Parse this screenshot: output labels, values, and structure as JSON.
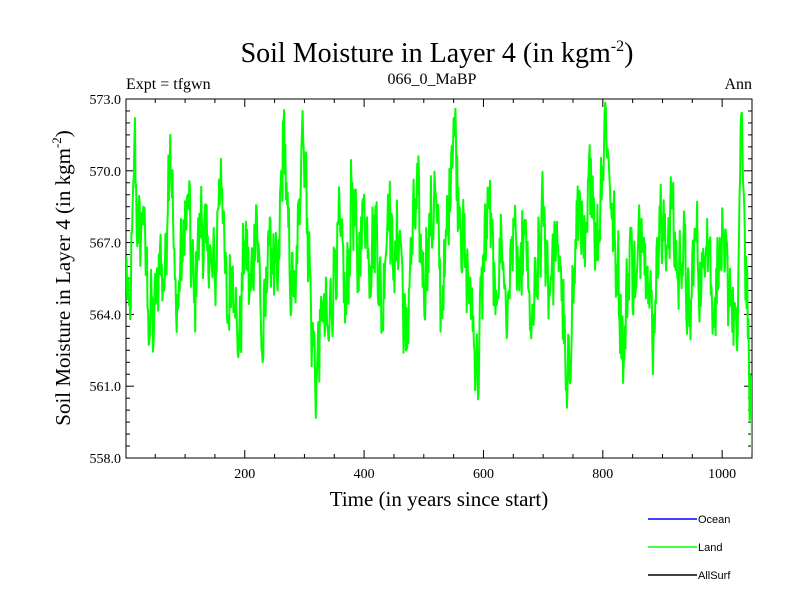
{
  "chart_data": {
    "type": "line",
    "title_main": "Soil Moisture in Layer 4 (in kgm",
    "title_sup": "-2",
    "title_close": ")",
    "subtitle_left": "Expt = tfgwn",
    "subtitle_center": "066_0_MaBP",
    "subtitle_right": "Ann",
    "xlabel": "Time (in years since start)",
    "ylabel_main": "Soil Moisture in Layer 4 (in kgm",
    "ylabel_sup": "-2",
    "ylabel_close": ")",
    "xlim": [
      1,
      1050
    ],
    "ylim": [
      558.0,
      573.0
    ],
    "xticks": [
      200,
      400,
      600,
      800,
      1000
    ],
    "yticks": [
      "558.0",
      "561.0",
      "564.0",
      "567.0",
      "570.0",
      "573.0"
    ],
    "legend": [
      {
        "name": "Ocean",
        "color": "#0000ff"
      },
      {
        "name": "Land",
        "color": "#00ff00"
      },
      {
        "name": "AllSurf",
        "color": "#000000"
      }
    ],
    "series": [
      {
        "name": "Land",
        "color": "#00ff00",
        "x_start": 1,
        "x_step": 1,
        "anchors": [
          [
            1,
            565.5
          ],
          [
            8,
            563.8
          ],
          [
            15,
            571.3
          ],
          [
            22,
            567.0
          ],
          [
            30,
            568.5
          ],
          [
            38,
            564.2
          ],
          [
            48,
            563.5
          ],
          [
            58,
            566.8
          ],
          [
            65,
            565.0
          ],
          [
            75,
            571.5
          ],
          [
            85,
            564.0
          ],
          [
            95,
            566.5
          ],
          [
            105,
            569.0
          ],
          [
            115,
            564.5
          ],
          [
            125,
            568.0
          ],
          [
            135,
            567.0
          ],
          [
            150,
            565.5
          ],
          [
            160,
            570.5
          ],
          [
            170,
            564.0
          ],
          [
            180,
            566.0
          ],
          [
            190,
            562.5
          ],
          [
            200,
            567.0
          ],
          [
            210,
            565.0
          ],
          [
            220,
            568.5
          ],
          [
            230,
            562.0
          ],
          [
            240,
            567.5
          ],
          [
            255,
            565.0
          ],
          [
            265,
            572.0
          ],
          [
            275,
            566.0
          ],
          [
            285,
            564.5
          ],
          [
            297,
            572.5
          ],
          [
            305,
            568.0
          ],
          [
            313,
            563.0
          ],
          [
            320,
            561.2
          ],
          [
            330,
            564.5
          ],
          [
            340,
            563.0
          ],
          [
            350,
            566.0
          ],
          [
            360,
            567.5
          ],
          [
            370,
            564.0
          ],
          [
            380,
            569.5
          ],
          [
            390,
            565.5
          ],
          [
            400,
            569.0
          ],
          [
            410,
            566.0
          ],
          [
            420,
            568.0
          ],
          [
            430,
            563.5
          ],
          [
            440,
            569.0
          ],
          [
            450,
            566.0
          ],
          [
            460,
            567.5
          ],
          [
            470,
            562.5
          ],
          [
            480,
            567.0
          ],
          [
            490,
            569.0
          ],
          [
            500,
            565.0
          ],
          [
            510,
            567.5
          ],
          [
            520,
            569.0
          ],
          [
            530,
            564.0
          ],
          [
            540,
            568.0
          ],
          [
            550,
            572.2
          ],
          [
            560,
            568.5
          ],
          [
            570,
            566.0
          ],
          [
            580,
            564.5
          ],
          [
            590,
            561.3
          ],
          [
            600,
            566.5
          ],
          [
            610,
            569.0
          ],
          [
            620,
            564.0
          ],
          [
            630,
            567.5
          ],
          [
            640,
            563.5
          ],
          [
            650,
            568.0
          ],
          [
            660,
            565.0
          ],
          [
            670,
            567.5
          ],
          [
            680,
            563.0
          ],
          [
            690,
            565.5
          ],
          [
            700,
            568.5
          ],
          [
            710,
            565.0
          ],
          [
            720,
            567.0
          ],
          [
            730,
            566.0
          ],
          [
            740,
            560.1
          ],
          [
            750,
            565.0
          ],
          [
            760,
            569.0
          ],
          [
            770,
            566.0
          ],
          [
            780,
            570.5
          ],
          [
            790,
            566.5
          ],
          [
            805,
            572.6
          ],
          [
            815,
            568.0
          ],
          [
            825,
            566.0
          ],
          [
            835,
            562.0
          ],
          [
            845,
            567.0
          ],
          [
            855,
            565.0
          ],
          [
            865,
            568.0
          ],
          [
            875,
            566.0
          ],
          [
            885,
            563.0
          ],
          [
            895,
            568.5
          ],
          [
            905,
            566.5
          ],
          [
            915,
            569.0
          ],
          [
            925,
            565.5
          ],
          [
            935,
            567.0
          ],
          [
            945,
            563.5
          ],
          [
            955,
            567.5
          ],
          [
            965,
            565.0
          ],
          [
            975,
            568.0
          ],
          [
            985,
            564.0
          ],
          [
            995,
            566.5
          ],
          [
            1005,
            566.0
          ],
          [
            1015,
            565.0
          ],
          [
            1025,
            562.5
          ],
          [
            1032,
            572.4
          ],
          [
            1038,
            567.5
          ],
          [
            1043,
            563.0
          ],
          [
            1047,
            561.0
          ],
          [
            1050,
            558.2
          ]
        ]
      }
    ]
  }
}
